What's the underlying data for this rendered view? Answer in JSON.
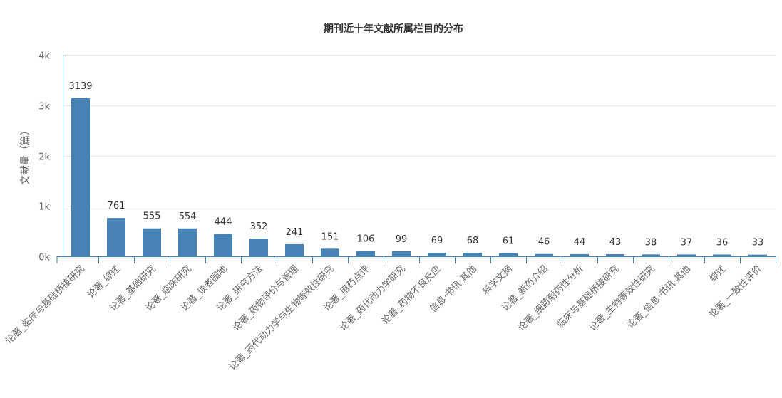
{
  "chart_data": {
    "type": "bar",
    "title": "期刊近十年文献所属栏目的分布",
    "xlabel": "",
    "ylabel": "文献量（篇）",
    "ylim": [
      0,
      4000
    ],
    "yticks": [
      0,
      1000,
      2000,
      3000,
      4000
    ],
    "ytick_labels": [
      "0k",
      "1k",
      "2k",
      "3k",
      "4k"
    ],
    "grid": true,
    "bar_color": "#4682b4",
    "axis_color": "#4682b4",
    "categories": [
      "论著_临床与基础桥接研究",
      "论著_综述",
      "论著_基础研究",
      "论著_临床研究",
      "论著_读者园地",
      "论著_研究方法",
      "论著_药物评价与管理",
      "论著_药代动力学与生物等效性研究",
      "论著_用药点评",
      "论著_药代动力学研究",
      "论著_药物不良反应",
      "信息·书讯·其他",
      "科学文摘",
      "论著_新药介绍",
      "论著_细菌耐药性分析",
      "临床与基础桥接研究",
      "论著_生物等效性研究",
      "论著_信息·书讯·其他",
      "综述",
      "论著_一致性评价"
    ],
    "values": [
      3139,
      761,
      555,
      554,
      444,
      352,
      241,
      151,
      106,
      99,
      69,
      68,
      61,
      46,
      44,
      43,
      38,
      37,
      36,
      33
    ]
  }
}
